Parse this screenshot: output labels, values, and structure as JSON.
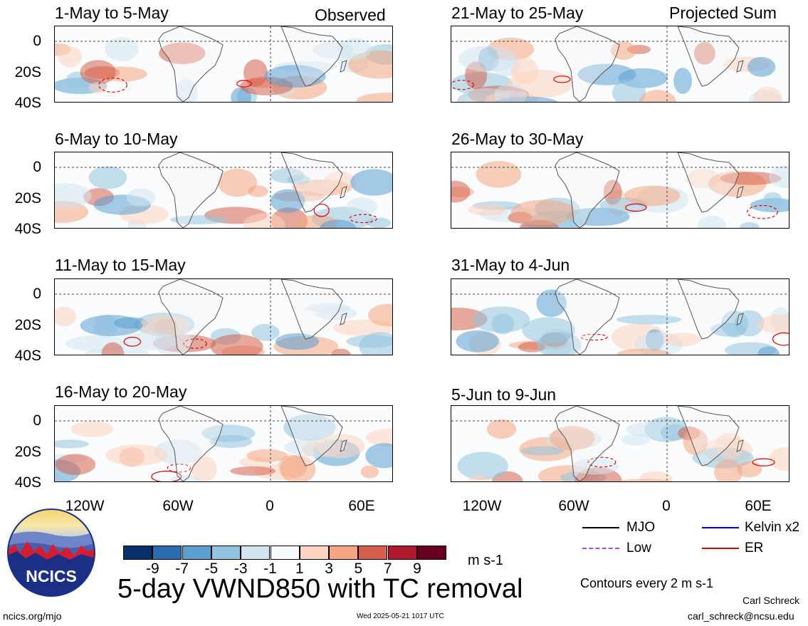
{
  "panels": [
    {
      "title": "1-May to 5-May",
      "tag": "Observed"
    },
    {
      "title": "6-May to 10-May",
      "tag": ""
    },
    {
      "title": "11-May to 15-May",
      "tag": ""
    },
    {
      "title": "16-May to 20-May",
      "tag": ""
    },
    {
      "title": "21-May to 25-May",
      "tag": "Projected Sum"
    },
    {
      "title": "26-May to 30-May",
      "tag": ""
    },
    {
      "title": "31-May to 4-Jun",
      "tag": ""
    },
    {
      "title": "5-Jun to 9-Jun",
      "tag": ""
    }
  ],
  "ylabels": [
    "0",
    "20S",
    "40S"
  ],
  "xlabels": [
    "120W",
    "60W",
    "0",
    "60E"
  ],
  "colorbar": {
    "labels": [
      "-9",
      "-7",
      "-5",
      "-3",
      "-1",
      "1",
      "3",
      "5",
      "7",
      "9"
    ],
    "colors": [
      "#08306b",
      "#2c6db2",
      "#5a9fd1",
      "#93c4df",
      "#d1e4f1",
      "#f7fbff",
      "#fdd4c0",
      "#f4a582",
      "#d6604d",
      "#b2182b",
      "#67001f"
    ],
    "unit": "m s-1"
  },
  "legend": [
    {
      "label": "MJO",
      "color": "#000000",
      "style": "solid"
    },
    {
      "label": "Kelvin x2",
      "color": "#0000cc",
      "style": "solid"
    },
    {
      "label": "Low",
      "color": "#a050e0",
      "style": "dashed"
    },
    {
      "label": "ER",
      "color": "#e00000",
      "style": "solid"
    }
  ],
  "contour_note": "Contours every 2 m s-1",
  "main_title": "5-day VWND850 with TC removal",
  "logo_text": "NCICS",
  "site": "ncics.org/mjo",
  "timestamp": "Wed 2025-05-21 1017 UTC",
  "author": "Carl Schreck",
  "email": "carl_schreck@ncsu.edu"
}
